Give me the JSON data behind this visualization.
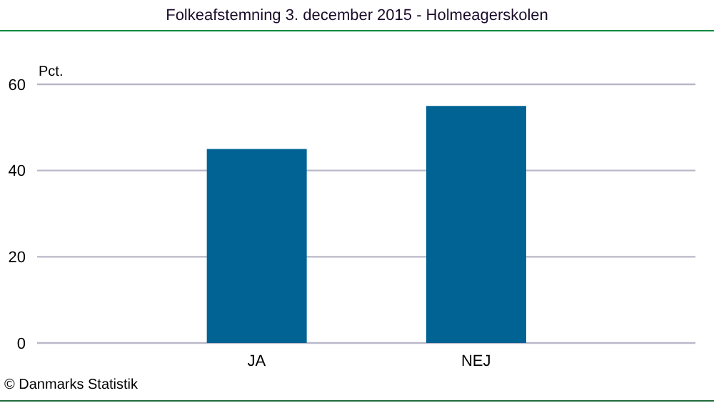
{
  "chart_data": {
    "type": "bar",
    "title": "Folkeafstemning 3. december 2015 - Holmeagerskolen",
    "ylabel": "Pct.",
    "categories": [
      "JA",
      "NEJ"
    ],
    "values": [
      45,
      55
    ],
    "color": "#006394",
    "ylim": [
      0,
      60
    ],
    "yticks": [
      0,
      20,
      40,
      60
    ],
    "grid": "y",
    "annotations": [
      "© Danmarks Statistik"
    ]
  }
}
